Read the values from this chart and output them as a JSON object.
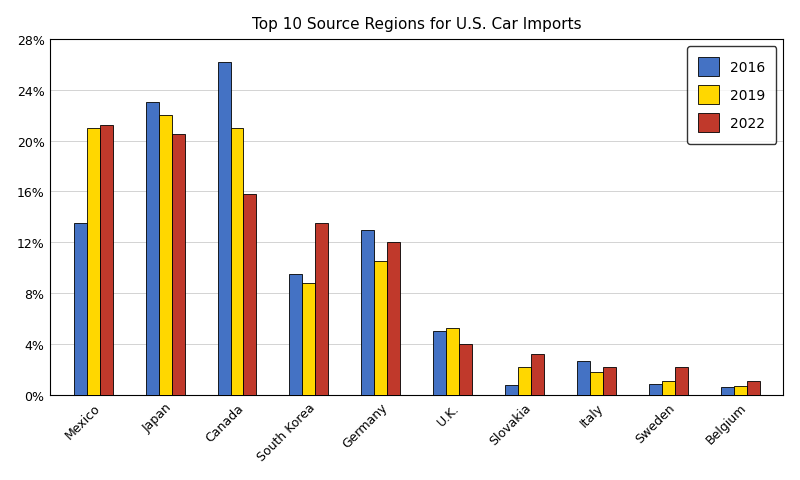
{
  "title": "Top 10 Source Regions for U.S. Car Imports",
  "categories": [
    "Mexico",
    "Japan",
    "Canada",
    "South Korea",
    "Germany",
    "U.K.",
    "Slovakia",
    "Italy",
    "Sweden",
    "Belgium"
  ],
  "years": [
    "2016",
    "2019",
    "2022"
  ],
  "values": {
    "2016": [
      13.5,
      23.0,
      26.2,
      9.5,
      13.0,
      5.0,
      0.8,
      2.7,
      0.9,
      0.6
    ],
    "2019": [
      21.0,
      22.0,
      21.0,
      8.8,
      10.5,
      5.3,
      2.2,
      1.8,
      1.1,
      0.7
    ],
    "2022": [
      21.2,
      20.5,
      15.8,
      13.5,
      12.0,
      4.0,
      3.2,
      2.2,
      2.2,
      1.1
    ]
  },
  "colors": {
    "2016": "#4472C4",
    "2019": "#FFD700",
    "2022": "#C0392B"
  },
  "ylim": [
    0,
    28
  ],
  "yticks": [
    0,
    4,
    8,
    12,
    16,
    20,
    24,
    28
  ],
  "ytick_labels": [
    "0%",
    "4%",
    "8%",
    "12%",
    "16%",
    "20%",
    "24%",
    "28%"
  ],
  "bar_width": 0.18,
  "figsize": [
    8.0,
    4.81
  ],
  "dpi": 100,
  "legend_fontsize": 10,
  "title_fontsize": 11,
  "tick_fontsize": 9,
  "edge_color": "#000000"
}
